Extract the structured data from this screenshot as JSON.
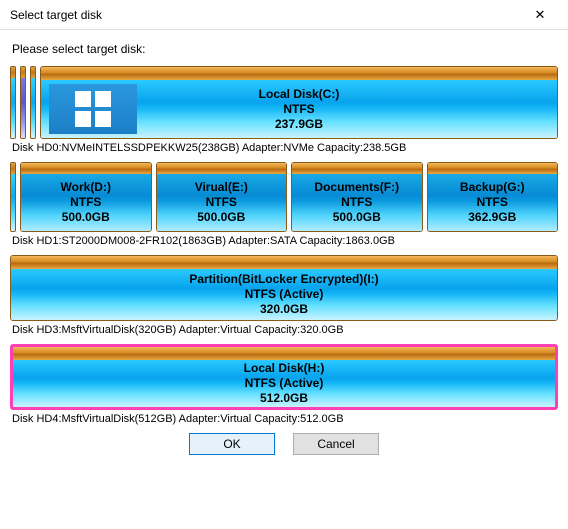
{
  "window": {
    "title": "Select target disk"
  },
  "prompt": "Please select target disk:",
  "disks": [
    {
      "caption": "Disk HD0:NVMeINTELSSDPEKKW25(238GB)  Adapter:NVMe  Capacity:238.5GB",
      "partitions": [
        {
          "name": "Local Disk(C:)",
          "fs": "NTFS",
          "size": "237.9GB",
          "has_winlogo": true
        }
      ]
    },
    {
      "caption": "Disk HD1:ST2000DM008-2FR102(1863GB)  Adapter:SATA  Capacity:1863.0GB",
      "partitions": [
        {
          "name": "Work(D:)",
          "fs": "NTFS",
          "size": "500.0GB"
        },
        {
          "name": "Virual(E:)",
          "fs": "NTFS",
          "size": "500.0GB"
        },
        {
          "name": "Documents(F:)",
          "fs": "NTFS",
          "size": "500.0GB"
        },
        {
          "name": "Backup(G:)",
          "fs": "NTFS",
          "size": "362.9GB"
        }
      ]
    },
    {
      "caption": "Disk HD3:MsftVirtualDisk(320GB)  Adapter:Virtual  Capacity:320.0GB",
      "partitions": [
        {
          "name": "Partition(BitLocker Encrypted)(I:)",
          "fs": "NTFS (Active)",
          "size": "320.0GB"
        }
      ]
    },
    {
      "caption": "Disk HD4:MsftVirtualDisk(512GB)  Adapter:Virtual  Capacity:512.0GB",
      "partitions": [
        {
          "name": "Local Disk(H:)",
          "fs": "NTFS (Active)",
          "size": "512.0GB",
          "selected": true
        }
      ]
    }
  ],
  "buttons": {
    "ok": "OK",
    "cancel": "Cancel"
  },
  "colors": {
    "orange_bar": [
      "#f5b85a",
      "#d48a20",
      "#b86a10",
      "#e8a840"
    ],
    "partition_gradient": [
      "#2bcaff",
      "#08a3ed",
      "#12b5f7",
      "#66e1ff",
      "#c9f3ff"
    ],
    "selection_border": "#ff3fb3",
    "winlogo_bg": [
      "#2a98dd",
      "#1c7fc7"
    ],
    "button_primary_border": "#0078d7",
    "button_primary_bg": "#e5f1fb",
    "button_bg": "#e1e1e1",
    "button_border": "#adadad"
  }
}
